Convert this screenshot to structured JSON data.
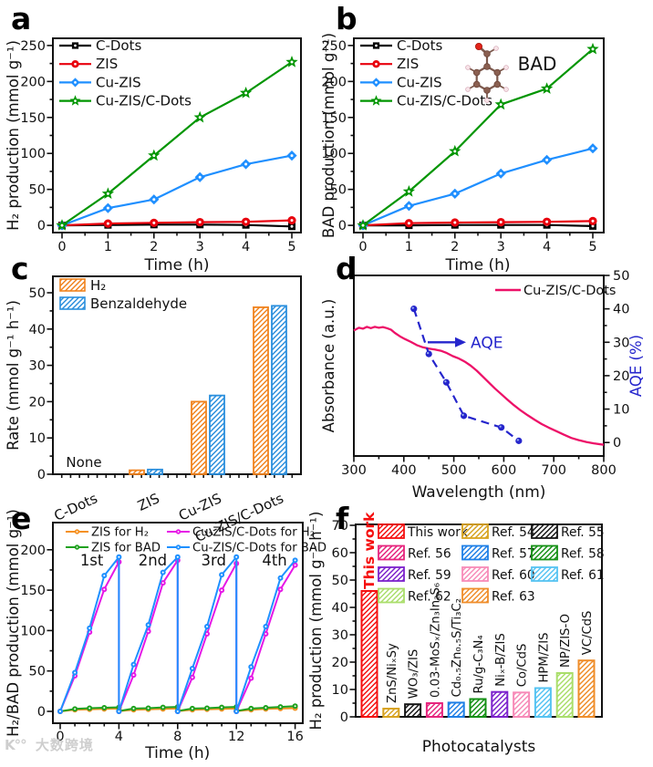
{
  "panel_letters": [
    "a",
    "b",
    "c",
    "d",
    "e",
    "f"
  ],
  "watermark": {
    "logo": "K°°",
    "text": "大数跨境"
  },
  "chart_data": [
    {
      "panel": "a",
      "type": "line",
      "xlabel": "Time (h)",
      "ylabel": "H₂ production (mmol g⁻¹)",
      "xticks": [
        0,
        1,
        2,
        3,
        4,
        5
      ],
      "yticks": [
        0,
        50,
        100,
        150,
        200,
        250
      ],
      "xlim": [
        -0.3,
        5.4
      ],
      "ylim": [
        -10,
        260
      ],
      "series": [
        {
          "name": "C-Dots",
          "color": "#000000",
          "marker": "square",
          "x": [
            0,
            1,
            2,
            3,
            4,
            5
          ],
          "y": [
            0,
            0.5,
            1,
            1,
            0.5,
            -1.5
          ]
        },
        {
          "name": "ZIS",
          "color": "#e8000d",
          "marker": "circle",
          "x": [
            0,
            1,
            2,
            3,
            4,
            5
          ],
          "y": [
            0,
            2.5,
            3.5,
            4.5,
            5,
            7
          ]
        },
        {
          "name": "Cu-ZIS",
          "color": "#1f8fff",
          "marker": "diamond",
          "x": [
            0,
            1,
            2,
            3,
            4,
            5
          ],
          "y": [
            0,
            24,
            36,
            67,
            85,
            97
          ]
        },
        {
          "name": "Cu-ZIS/C-Dots",
          "color": "#009500",
          "marker": "star",
          "x": [
            0,
            1,
            2,
            3,
            4,
            5
          ],
          "y": [
            0,
            44,
            97,
            150,
            184,
            227
          ]
        }
      ]
    },
    {
      "panel": "b",
      "type": "line",
      "xlabel": "Time (h)",
      "ylabel": "BAD production (mmol g⁻¹)",
      "annotation": "BAD",
      "molecule": "benzaldehyde",
      "xticks": [
        0,
        1,
        2,
        3,
        4,
        5
      ],
      "yticks": [
        0,
        50,
        100,
        150,
        200,
        250
      ],
      "xlim": [
        -0.3,
        5.4
      ],
      "ylim": [
        -10,
        260
      ],
      "series": [
        {
          "name": "C-Dots",
          "color": "#000000",
          "marker": "square",
          "x": [
            0,
            1,
            2,
            3,
            4,
            5
          ],
          "y": [
            0,
            0,
            0.5,
            0.5,
            0.5,
            -1
          ]
        },
        {
          "name": "ZIS",
          "color": "#e8000d",
          "marker": "circle",
          "x": [
            0,
            1,
            2,
            3,
            4,
            5
          ],
          "y": [
            0,
            3,
            4,
            4.5,
            5,
            6
          ]
        },
        {
          "name": "Cu-ZIS",
          "color": "#1f8fff",
          "marker": "diamond",
          "x": [
            0,
            1,
            2,
            3,
            4,
            5
          ],
          "y": [
            0,
            27,
            44,
            72,
            91,
            107
          ]
        },
        {
          "name": "Cu-ZIS/C-Dots",
          "color": "#009500",
          "marker": "star",
          "x": [
            0,
            1,
            2,
            3,
            4,
            5
          ],
          "y": [
            0,
            47,
            103,
            168,
            190,
            245
          ]
        }
      ]
    },
    {
      "panel": "c",
      "type": "bar",
      "ylabel": "Rate (mmol g⁻¹ h⁻¹)",
      "annotation": "None",
      "categories": [
        "C-Dots",
        "ZIS",
        "Cu-ZIS",
        "Cu-ZIS/C-Dots"
      ],
      "yticks": [
        0,
        10,
        20,
        30,
        40,
        50
      ],
      "ylim": [
        0,
        54.5
      ],
      "series": [
        {
          "name": "H₂",
          "color": "#f0831e",
          "values": [
            0,
            1.1,
            20,
            46
          ]
        },
        {
          "name": "Benzaldehyde",
          "color": "#2b8fdd",
          "values": [
            0,
            1.3,
            21.7,
            46.4
          ]
        }
      ]
    },
    {
      "panel": "d",
      "type": "line-dual",
      "xlabel": "Wavelength (nm)",
      "ylabel_left": "Absorbance (a.u.)",
      "ylabel_right": "AQE (%)",
      "legend": "Cu-ZIS/C-Dots",
      "arrow_label": "AQE",
      "xticks": [
        300,
        400,
        500,
        600,
        700,
        800
      ],
      "yticks_right": [
        0,
        10,
        20,
        30,
        40,
        50
      ],
      "absorbance": {
        "name": "Cu-ZIS/C-Dots",
        "color": "#ed1168",
        "x": [
          300,
          310,
          318,
          326,
          334,
          342,
          350,
          358,
          366,
          374,
          382,
          392,
          402,
          414,
          426,
          438,
          450,
          462,
          474,
          486,
          498,
          510,
          522,
          534,
          546,
          558,
          570,
          582,
          594,
          606,
          620,
          634,
          648,
          662,
          676,
          690,
          705,
          720,
          735,
          750,
          765,
          780,
          800
        ],
        "y": [
          0.695,
          0.71,
          0.705,
          0.715,
          0.708,
          0.715,
          0.71,
          0.714,
          0.708,
          0.7,
          0.682,
          0.663,
          0.648,
          0.632,
          0.614,
          0.602,
          0.595,
          0.59,
          0.583,
          0.57,
          0.553,
          0.54,
          0.522,
          0.5,
          0.472,
          0.44,
          0.407,
          0.375,
          0.345,
          0.315,
          0.282,
          0.252,
          0.225,
          0.2,
          0.177,
          0.157,
          0.138,
          0.118,
          0.1,
          0.088,
          0.078,
          0.07,
          0.062
        ]
      },
      "aqe": {
        "name": "AQE",
        "color": "#2525cc",
        "x": [
          420,
          450,
          485,
          520,
          595,
          630
        ],
        "y": [
          40,
          26.5,
          18,
          8,
          4.5,
          0.5
        ]
      }
    },
    {
      "panel": "e",
      "type": "line-cycles",
      "xlabel": "Time (h)",
      "ylabel": "H₂/BAD production (mmol g⁻¹)",
      "cycle_labels": [
        "1st",
        "2nd",
        "3rd",
        "4th"
      ],
      "xticks": [
        0,
        4,
        8,
        12,
        16
      ],
      "yticks": [
        0,
        50,
        100,
        150,
        200
      ],
      "series": [
        {
          "name": "ZIS for H₂",
          "color": "#f59122",
          "cycles": [
            [
              0,
              2,
              2.5,
              3,
              3.5
            ],
            [
              0.3,
              2,
              2.5,
              3,
              3.5
            ],
            [
              0.3,
              2,
              2.5,
              3,
              3.5
            ],
            [
              0.3,
              2,
              3,
              3.5,
              4
            ]
          ]
        },
        {
          "name": "ZIS for BAD",
          "color": "#1fa11f",
          "cycles": [
            [
              0,
              3,
              4,
              4.5,
              5
            ],
            [
              0.5,
              3.5,
              4,
              5,
              5.5
            ],
            [
              0.5,
              3.5,
              4,
              5,
              5.5
            ],
            [
              0.5,
              3.5,
              4.5,
              5.5,
              6.5
            ]
          ]
        },
        {
          "name": "Cu-ZIS/C-Dots for H₂",
          "color": "#e618e6",
          "cycles": [
            [
              0,
              44,
              98,
              151,
              185
            ],
            [
              0,
              45,
              99,
              159,
              187
            ],
            [
              0,
              42,
              96,
              150,
              183
            ],
            [
              0,
              41,
              96,
              151,
              181
            ]
          ]
        },
        {
          "name": "Cu-ZIS/C-Dots for BAD",
          "color": "#1e90ff",
          "cycles": [
            [
              0,
              48,
              103,
              168,
              191
            ],
            [
              0,
              58,
              107,
              172,
              191
            ],
            [
              0,
              53,
              105,
              169,
              191
            ],
            [
              0,
              55,
              105,
              165,
              187
            ]
          ]
        }
      ]
    },
    {
      "panel": "f",
      "type": "bar",
      "xlabel": "Photocatalysts",
      "ylabel": "H₂ production (mmol g⁻¹ h⁻¹)",
      "yticks": [
        0,
        10,
        20,
        30,
        40,
        50,
        60,
        70
      ],
      "ylim": [
        0,
        70
      ],
      "side_label": "This work",
      "bars": [
        {
          "label": "",
          "ref": "This work",
          "value": 46,
          "color": "#f50f0f"
        },
        {
          "label": "ZnS/NiₓSy",
          "ref": "Ref. 54",
          "value": 3,
          "color": "#d8a320"
        },
        {
          "label": "WO₃/ZIS",
          "ref": "Ref. 55",
          "value": 4.6,
          "color": "#151515"
        },
        {
          "label": "0.03-MoSₓ/Zn₃In₂S₆",
          "ref": "Ref. 56",
          "value": 5,
          "color": "#e6247d"
        },
        {
          "label": "Cd₀.₅Zn₀.₅S/Ti₃C₂",
          "ref": "Ref. 57",
          "value": 5.2,
          "color": "#1e7fe6"
        },
        {
          "label": "Ru/g-C₃N₄",
          "ref": "Ref. 58",
          "value": 6.5,
          "color": "#159015"
        },
        {
          "label": "Niₓ-B/ZIS",
          "ref": "Ref. 59",
          "value": 9.1,
          "color": "#7c22cc"
        },
        {
          "label": "Co/CdS",
          "ref": "Ref. 60",
          "value": 8.9,
          "color": "#f78bb8"
        },
        {
          "label": "HPM/ZIS",
          "ref": "Ref. 61",
          "value": 10.5,
          "color": "#55c3f2"
        },
        {
          "label": "NP/ZIS-O",
          "ref": "Ref. 62",
          "value": 16,
          "color": "#aade6b"
        },
        {
          "label": "VC/CdS",
          "ref": "Ref. 63",
          "value": 20.6,
          "color": "#ef8d2a"
        }
      ],
      "legend": [
        {
          "label": "This work",
          "color": "#f50f0f"
        },
        {
          "label": "Ref. 54",
          "color": "#d8a320"
        },
        {
          "label": "Ref. 55",
          "color": "#151515"
        },
        {
          "label": "Ref. 56",
          "color": "#e6247d"
        },
        {
          "label": "Ref. 57",
          "color": "#1e7fe6"
        },
        {
          "label": "Ref. 58",
          "color": "#159015"
        },
        {
          "label": "Ref. 59",
          "color": "#7c22cc"
        },
        {
          "label": "Ref. 60",
          "color": "#f78bb8"
        },
        {
          "label": "Ref. 61",
          "color": "#55c3f2"
        },
        {
          "label": "Ref. 62",
          "color": "#aade6b"
        },
        {
          "label": "Ref. 63",
          "color": "#ef8d2a"
        }
      ]
    }
  ]
}
